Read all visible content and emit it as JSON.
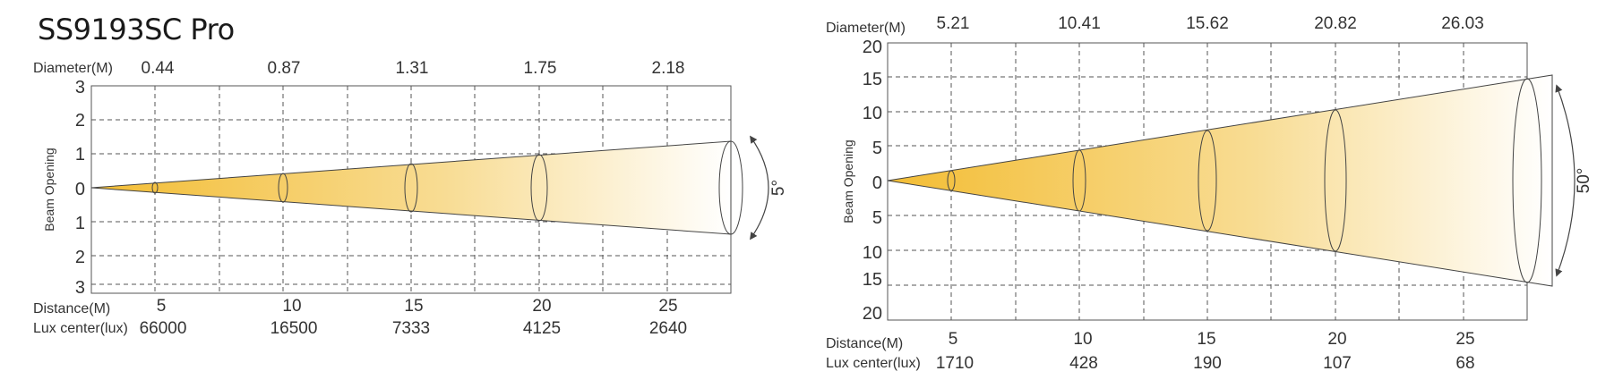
{
  "title": "SS9193SC Pro",
  "colors": {
    "beam_start": "#f5c242",
    "beam_end": "#ffffff",
    "grid": "#555555",
    "outline": "#444444"
  },
  "charts": [
    {
      "beam_angle_label": "5°",
      "y_axis_label": "Beam Opening",
      "diameter_label": "Diameter(M)",
      "diameters": [
        "0.44",
        "0.87",
        "1.31",
        "1.75",
        "2.18"
      ],
      "y_ticks": [
        "3",
        "2",
        "1",
        "0",
        "1",
        "2",
        "3"
      ],
      "distance_label": "Distance(M)",
      "distances": [
        "5",
        "10",
        "15",
        "20",
        "25"
      ],
      "lux_label": "Lux center(lux)",
      "lux": [
        "66000",
        "16500",
        "7333",
        "4125",
        "2640"
      ]
    },
    {
      "beam_angle_label": "50°",
      "y_axis_label": "Beam Opening",
      "diameter_label": "Diameter(M)",
      "diameters": [
        "5.21",
        "10.41",
        "15.62",
        "20.82",
        "26.03"
      ],
      "y_ticks": [
        "20",
        "15",
        "10",
        "5",
        "0",
        "5",
        "10",
        "15",
        "20"
      ],
      "distance_label": "Distance(M)",
      "distances": [
        "5",
        "10",
        "15",
        "20",
        "25"
      ],
      "lux_label": "Lux center(lux)",
      "lux": [
        "1710",
        "428",
        "190",
        "107",
        "68"
      ]
    }
  ]
}
